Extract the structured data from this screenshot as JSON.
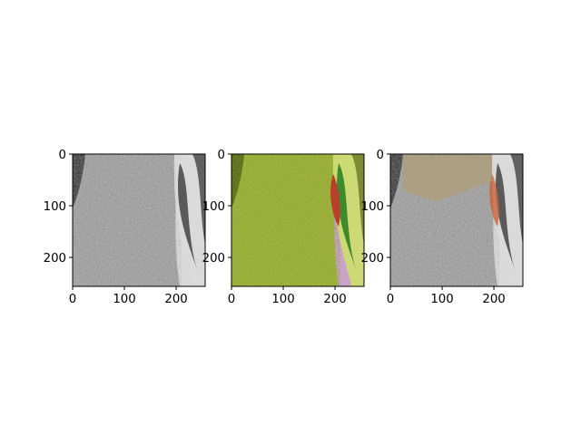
{
  "chart_data": [
    {
      "type": "image",
      "content": "grayscale photo of a jackfruit with leaves at right",
      "image_size": [
        256,
        256
      ],
      "xlim": [
        0,
        256
      ],
      "ylim": [
        256,
        0
      ],
      "xticks": [
        {
          "value": 0,
          "label": "0"
        },
        {
          "value": 100,
          "label": "100"
        },
        {
          "value": 200,
          "label": "200"
        }
      ],
      "yticks": [
        {
          "value": 0,
          "label": "0"
        },
        {
          "value": 100,
          "label": "100"
        },
        {
          "value": 200,
          "label": "200"
        }
      ],
      "colors": {
        "base": "#9a9a9a",
        "light": "#d9d9d9",
        "dark": "#2e2e2e",
        "leaf": "#5a5a5a"
      }
    },
    {
      "type": "image",
      "content": "color photo of a green jackfruit with red and green leaves on a pink background",
      "image_size": [
        256,
        256
      ],
      "xlim": [
        0,
        256
      ],
      "ylim": [
        256,
        0
      ],
      "xticks": [
        {
          "value": 0,
          "label": "0"
        },
        {
          "value": 100,
          "label": "100"
        },
        {
          "value": 200,
          "label": "200"
        }
      ],
      "yticks": [
        {
          "value": 0,
          "label": "0"
        },
        {
          "value": 100,
          "label": "100"
        },
        {
          "value": 200,
          "label": "200"
        }
      ],
      "colors": {
        "base": "#9fb53a",
        "light": "#cddf6a",
        "dark": "#5b6b18",
        "leaf": "#3f8a2a",
        "accent": "#b8402a",
        "background": "#c9a3c8"
      }
    },
    {
      "type": "image",
      "content": "grayscale jackfruit photo with a tan/orange colorized overlay near the top and on the leaf",
      "image_size": [
        256,
        256
      ],
      "xlim": [
        0,
        256
      ],
      "ylim": [
        256,
        0
      ],
      "xticks": [
        {
          "value": 0,
          "label": "0"
        },
        {
          "value": 100,
          "label": "100"
        },
        {
          "value": 200,
          "label": "200"
        }
      ],
      "yticks": [
        {
          "value": 0,
          "label": "0"
        },
        {
          "value": 100,
          "label": "100"
        },
        {
          "value": 200,
          "label": "200"
        }
      ],
      "colors": {
        "base": "#9a9a9a",
        "light": "#d9d9d9",
        "dark": "#2e2e2e",
        "leaf": "#5a5a5a",
        "overlay": "#b59a6a",
        "accent": "#c8643a"
      }
    }
  ]
}
